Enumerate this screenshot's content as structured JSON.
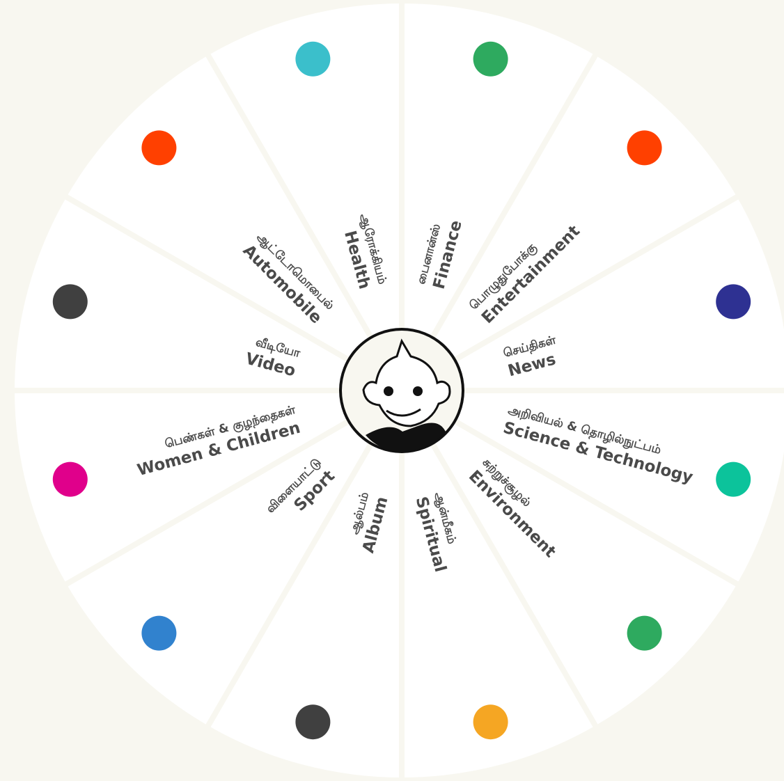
{
  "items": [
    {
      "tamil": "பைனான்ஸ்",
      "english": "Finance",
      "color": "#2eaa5f"
    },
    {
      "tamil": "பொழுதுபோக்கு",
      "english": "Entertainment",
      "color": "#ff4000"
    },
    {
      "tamil": "செய்திகள்",
      "english": "News",
      "color": "#2e3192"
    },
    {
      "tamil": "அறிவியல் & தொழில்நுட்பம்",
      "english": "Science & Technology",
      "color": "#0cc39b"
    },
    {
      "tamil": "சுற்றுச்சூழல்",
      "english": "Environment",
      "color": "#2eaa5f"
    },
    {
      "tamil": "ஆன்மீகம்",
      "english": "Spiritual",
      "color": "#f5a623"
    },
    {
      "tamil": "ஆல்பம்",
      "english": "Album",
      "color": "#404040"
    },
    {
      "tamil": "விளையாட்டு",
      "english": "Sport",
      "color": "#3182ce"
    },
    {
      "tamil": "பெண்கள் & குழந்தைகள்",
      "english": "Women & Children",
      "color": "#e0008b"
    },
    {
      "tamil": "வீடியோ",
      "english": "Video",
      "color": "#404040"
    },
    {
      "tamil": "ஆட்டோமொபைல்",
      "english": "Automobile",
      "color": "#ff4000"
    },
    {
      "tamil": "ஆரோக்கியம்",
      "english": "Health",
      "color": "#3bbfcb"
    }
  ]
}
